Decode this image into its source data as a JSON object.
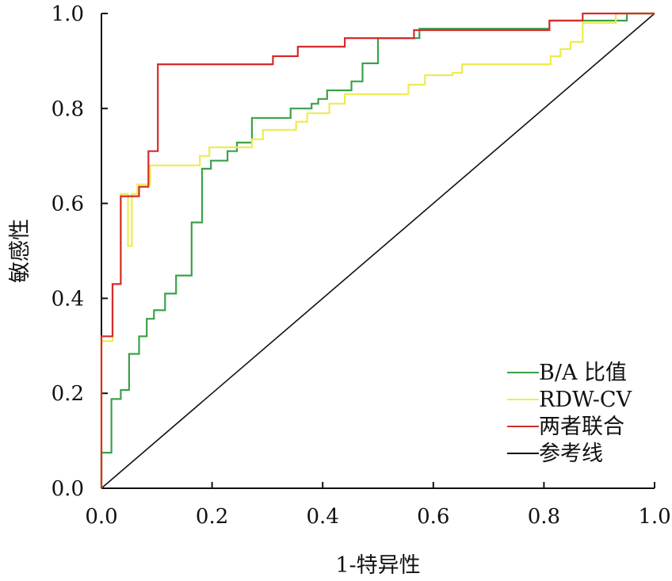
{
  "chart_data": {
    "type": "line",
    "xlabel": "1-特异性",
    "ylabel": "敏感性",
    "xlim": [
      0,
      1
    ],
    "ylim": [
      0,
      1
    ],
    "x_ticks": [
      "0.0",
      "0.2",
      "0.4",
      "0.6",
      "0.8",
      "1.0"
    ],
    "y_ticks": [
      "0.0",
      "0.2",
      "0.4",
      "0.6",
      "0.8",
      "1.0"
    ],
    "legend_position": "bottom-right",
    "series": [
      {
        "name": "B/A 比值",
        "color": "#3aa14a",
        "points": [
          [
            0,
            0
          ],
          [
            0,
            0.075
          ],
          [
            0.018,
            0.075
          ],
          [
            0.018,
            0.188
          ],
          [
            0.035,
            0.188
          ],
          [
            0.035,
            0.207
          ],
          [
            0.05,
            0.207
          ],
          [
            0.05,
            0.283
          ],
          [
            0.068,
            0.283
          ],
          [
            0.068,
            0.32
          ],
          [
            0.082,
            0.32
          ],
          [
            0.082,
            0.357
          ],
          [
            0.095,
            0.357
          ],
          [
            0.095,
            0.375
          ],
          [
            0.115,
            0.375
          ],
          [
            0.115,
            0.41
          ],
          [
            0.135,
            0.41
          ],
          [
            0.135,
            0.448
          ],
          [
            0.163,
            0.448
          ],
          [
            0.163,
            0.56
          ],
          [
            0.182,
            0.56
          ],
          [
            0.182,
            0.673
          ],
          [
            0.198,
            0.673
          ],
          [
            0.198,
            0.69
          ],
          [
            0.228,
            0.69
          ],
          [
            0.228,
            0.71
          ],
          [
            0.245,
            0.71
          ],
          [
            0.245,
            0.728
          ],
          [
            0.272,
            0.728
          ],
          [
            0.272,
            0.78
          ],
          [
            0.312,
            0.78
          ],
          [
            0.312,
            0.78
          ],
          [
            0.342,
            0.78
          ],
          [
            0.342,
            0.8
          ],
          [
            0.38,
            0.8
          ],
          [
            0.38,
            0.81
          ],
          [
            0.392,
            0.81
          ],
          [
            0.392,
            0.82
          ],
          [
            0.408,
            0.82
          ],
          [
            0.408,
            0.838
          ],
          [
            0.452,
            0.838
          ],
          [
            0.452,
            0.857
          ],
          [
            0.472,
            0.857
          ],
          [
            0.472,
            0.895
          ],
          [
            0.5,
            0.895
          ],
          [
            0.5,
            0.948
          ],
          [
            0.575,
            0.948
          ],
          [
            0.575,
            0.968
          ],
          [
            0.81,
            0.968
          ],
          [
            0.81,
            0.985
          ],
          [
            0.95,
            0.985
          ],
          [
            0.95,
            1.0
          ],
          [
            1.0,
            1.0
          ]
        ]
      },
      {
        "name": "RDW-CV",
        "color": "#ecec50",
        "points": [
          [
            0,
            0
          ],
          [
            0,
            0.31
          ],
          [
            0.02,
            0.31
          ],
          [
            0.02,
            0.43
          ],
          [
            0.035,
            0.43
          ],
          [
            0.035,
            0.62
          ],
          [
            0.048,
            0.62
          ],
          [
            0.048,
            0.51
          ],
          [
            0.055,
            0.51
          ],
          [
            0.055,
            0.62
          ],
          [
            0.065,
            0.62
          ],
          [
            0.065,
            0.64
          ],
          [
            0.075,
            0.64
          ],
          [
            0.075,
            0.64
          ],
          [
            0.088,
            0.64
          ],
          [
            0.088,
            0.68
          ],
          [
            0.178,
            0.68
          ],
          [
            0.178,
            0.7
          ],
          [
            0.195,
            0.7
          ],
          [
            0.195,
            0.718
          ],
          [
            0.272,
            0.718
          ],
          [
            0.272,
            0.735
          ],
          [
            0.292,
            0.735
          ],
          [
            0.292,
            0.755
          ],
          [
            0.352,
            0.755
          ],
          [
            0.352,
            0.772
          ],
          [
            0.372,
            0.772
          ],
          [
            0.372,
            0.79
          ],
          [
            0.412,
            0.79
          ],
          [
            0.412,
            0.81
          ],
          [
            0.44,
            0.81
          ],
          [
            0.44,
            0.83
          ],
          [
            0.46,
            0.83
          ],
          [
            0.46,
            0.83
          ],
          [
            0.555,
            0.83
          ],
          [
            0.555,
            0.85
          ],
          [
            0.585,
            0.85
          ],
          [
            0.585,
            0.87
          ],
          [
            0.635,
            0.87
          ],
          [
            0.635,
            0.875
          ],
          [
            0.652,
            0.875
          ],
          [
            0.652,
            0.893
          ],
          [
            0.812,
            0.893
          ],
          [
            0.812,
            0.91
          ],
          [
            0.83,
            0.91
          ],
          [
            0.83,
            0.925
          ],
          [
            0.848,
            0.925
          ],
          [
            0.848,
            0.94
          ],
          [
            0.87,
            0.94
          ],
          [
            0.87,
            0.98
          ],
          [
            0.93,
            0.98
          ],
          [
            0.93,
            1.0
          ],
          [
            1.0,
            1.0
          ]
        ]
      },
      {
        "name": "两者联合",
        "color": "#d62b2b",
        "points": [
          [
            0,
            0
          ],
          [
            0,
            0.32
          ],
          [
            0.02,
            0.32
          ],
          [
            0.02,
            0.43
          ],
          [
            0.035,
            0.43
          ],
          [
            0.035,
            0.615
          ],
          [
            0.055,
            0.615
          ],
          [
            0.055,
            0.615
          ],
          [
            0.068,
            0.615
          ],
          [
            0.068,
            0.635
          ],
          [
            0.085,
            0.635
          ],
          [
            0.085,
            0.71
          ],
          [
            0.102,
            0.71
          ],
          [
            0.102,
            0.893
          ],
          [
            0.31,
            0.893
          ],
          [
            0.31,
            0.91
          ],
          [
            0.355,
            0.91
          ],
          [
            0.355,
            0.93
          ],
          [
            0.44,
            0.93
          ],
          [
            0.44,
            0.948
          ],
          [
            0.565,
            0.948
          ],
          [
            0.565,
            0.965
          ],
          [
            0.81,
            0.965
          ],
          [
            0.81,
            0.985
          ],
          [
            0.87,
            0.985
          ],
          [
            0.87,
            1.0
          ],
          [
            1.0,
            1.0
          ]
        ]
      },
      {
        "name": "参考线",
        "color": "#111111",
        "points": [
          [
            0,
            0
          ],
          [
            1.0,
            1.0
          ]
        ]
      }
    ]
  }
}
